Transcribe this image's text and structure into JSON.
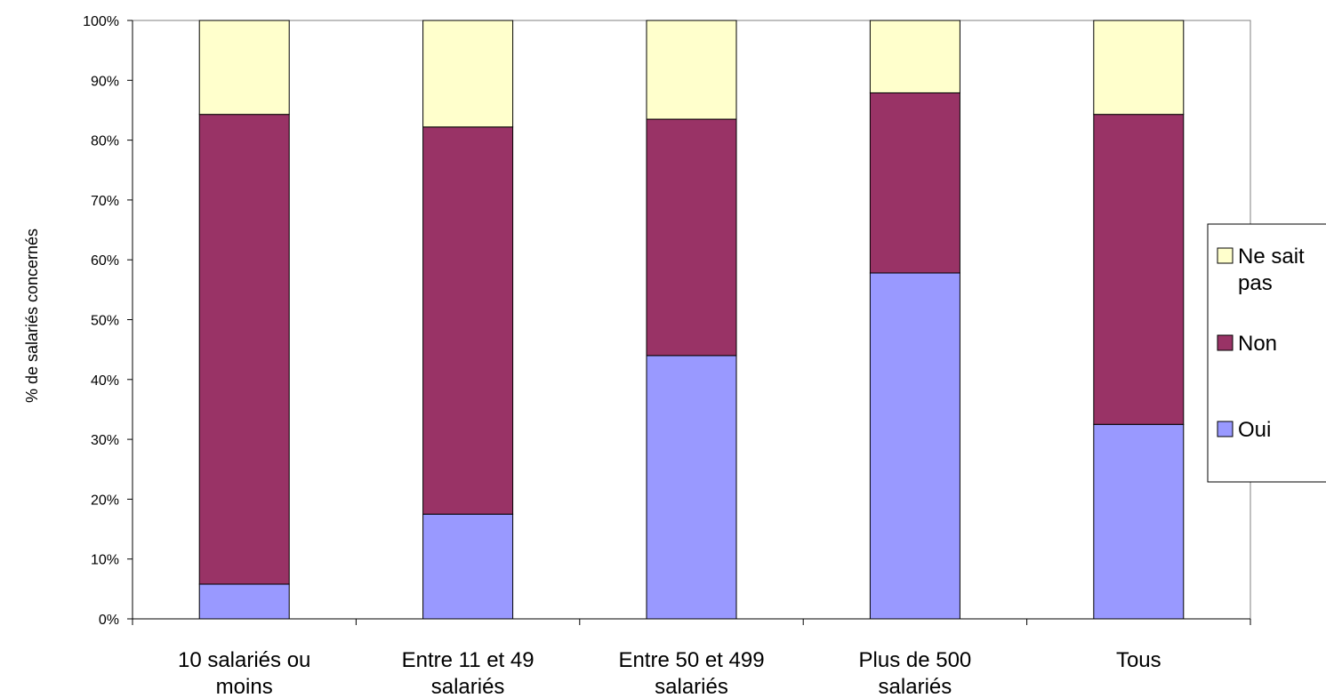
{
  "chart_data": {
    "type": "bar",
    "stacked": true,
    "title": "",
    "xlabel": "",
    "ylabel": "% de salariés concernés",
    "ylim": [
      0,
      100
    ],
    "y_ticks": [
      "0%",
      "10%",
      "20%",
      "30%",
      "40%",
      "50%",
      "60%",
      "70%",
      "80%",
      "90%",
      "100%"
    ],
    "categories": [
      [
        "10 salariés ou",
        "moins"
      ],
      [
        "Entre 11 et 49",
        "salariés"
      ],
      [
        "Entre 50 et 499",
        "salariés"
      ],
      [
        "Plus de 500",
        "salariés"
      ],
      [
        "Tous"
      ]
    ],
    "series": [
      {
        "name": "Oui",
        "color": "#9999ff",
        "values": [
          5.8,
          17.5,
          44.0,
          57.8,
          32.5
        ]
      },
      {
        "name": "Non",
        "color": "#993366",
        "values": [
          78.5,
          64.7,
          39.5,
          30.1,
          51.8
        ]
      },
      {
        "name": "Ne sait pas",
        "color": "#ffffcc",
        "values": [
          15.7,
          17.8,
          16.5,
          12.1,
          15.7
        ]
      }
    ],
    "legend": {
      "placement": "right",
      "items": [
        {
          "series": "Ne sait pas",
          "lines": [
            "Ne sait",
            "pas"
          ]
        },
        {
          "series": "Non",
          "lines": [
            "Non"
          ]
        },
        {
          "series": "Oui",
          "lines": [
            "Oui"
          ]
        }
      ]
    },
    "grid": false
  }
}
